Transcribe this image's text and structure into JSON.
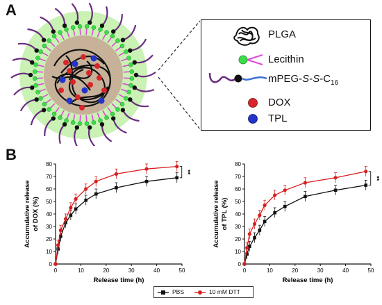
{
  "panel_a": {
    "letter": "A",
    "legend": {
      "plga": "PLGA",
      "lecithin": "Lecithin",
      "mpeg_prefix": "mPEG-",
      "mpeg_s1": "S",
      "mpeg_dash1": "-",
      "mpeg_s2": "S",
      "mpeg_dash2": "-C",
      "mpeg_sub": "16",
      "dox": "DOX",
      "tpl": "TPL"
    },
    "colors": {
      "corona": "#c9f2b4",
      "core": "#c7b299",
      "peg": "#6b2c7f",
      "lecithin_head": "#3ddc4a",
      "lecithin_tail": "#e04ad8",
      "dox": "#d9262a",
      "tpl": "#2433c9",
      "mpeg_tail": "#3a6fd8"
    }
  },
  "panel_b": {
    "letter": "B"
  },
  "legend_bottom": {
    "pbs": "PBS",
    "dtt": "10 mM DTT"
  },
  "chart_data": [
    {
      "type": "line",
      "xlabel": "Release time (h)",
      "ylabel_line1": "Accumulative release",
      "ylabel_line2": "of DOX (%)",
      "xlim": [
        0,
        50
      ],
      "ylim": [
        0,
        80
      ],
      "xticks": [
        "0",
        "10",
        "20",
        "30",
        "40",
        "50"
      ],
      "yticks": [
        "0",
        "10",
        "20",
        "30",
        "40",
        "50",
        "60",
        "70",
        "80"
      ],
      "significance": "**",
      "x": [
        0,
        1,
        2,
        4,
        6,
        8,
        12,
        16,
        24,
        36,
        48
      ],
      "series": [
        {
          "name": "PBS",
          "color": "#111111",
          "values": [
            0,
            12,
            22,
            33,
            39,
            44,
            51,
            56,
            61,
            66,
            69
          ]
        },
        {
          "name": "10 mM DTT",
          "color": "#d62020",
          "values": [
            0,
            15,
            27,
            36,
            45,
            52,
            60,
            66,
            72,
            76,
            78
          ]
        }
      ]
    },
    {
      "type": "line",
      "xlabel": "Release time (h)",
      "ylabel_line1": "Accumulative release",
      "ylabel_line2": "of TPL (%)",
      "xlim": [
        0,
        50
      ],
      "ylim": [
        0,
        80
      ],
      "xticks": [
        "0",
        "10",
        "20",
        "30",
        "40",
        "50"
      ],
      "yticks": [
        "0",
        "10",
        "20",
        "30",
        "40",
        "50",
        "60",
        "70",
        "80"
      ],
      "significance": "**",
      "x": [
        0,
        1,
        2,
        4,
        6,
        8,
        12,
        16,
        24,
        36,
        48
      ],
      "series": [
        {
          "name": "PBS",
          "color": "#111111",
          "values": [
            0,
            8,
            14,
            21,
            27,
            34,
            41,
            46,
            54,
            59,
            63
          ]
        },
        {
          "name": "10 mM DTT",
          "color": "#d62020",
          "values": [
            0,
            13,
            24,
            32,
            39,
            47,
            55,
            59,
            65,
            69,
            74
          ]
        }
      ]
    }
  ]
}
